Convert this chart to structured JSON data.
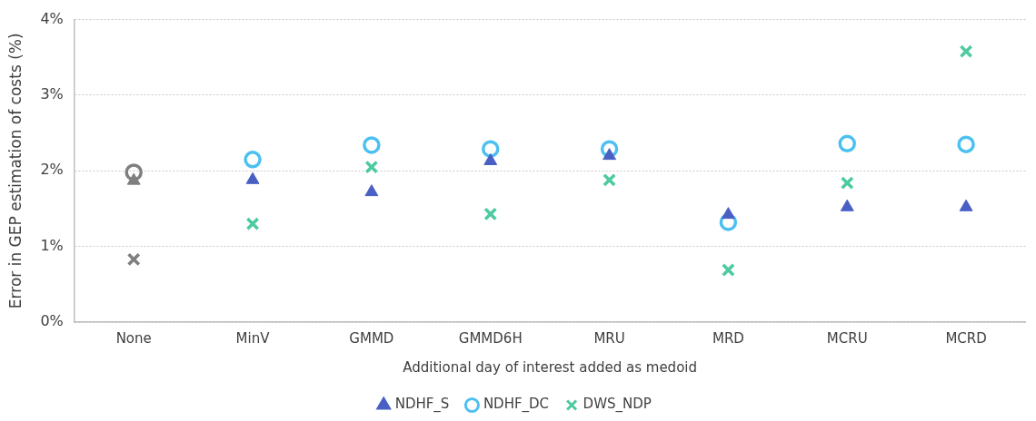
{
  "chart_data": {
    "type": "scatter",
    "xlabel": "Additional day of interest added as medoid",
    "ylabel": "Error in GEP estimation of costs (%)",
    "categories": [
      "None",
      "MinV",
      "GMMD",
      "GMMD6H",
      "MRU",
      "MRD",
      "MCRU",
      "MCRD"
    ],
    "ylim": [
      0,
      4
    ],
    "yticks": [
      {
        "value": 0,
        "label": "0%"
      },
      {
        "value": 1,
        "label": "1%"
      },
      {
        "value": 2,
        "label": "2%"
      },
      {
        "value": 3,
        "label": "3%"
      },
      {
        "value": 4,
        "label": "4%"
      }
    ],
    "grid": "y",
    "legend": "bottom",
    "series": [
      {
        "name": "NDHF_S",
        "marker": "triangle",
        "color": "#4a5fc4",
        "colors": [
          "#7f7f7f",
          "#4a5fc4",
          "#4a5fc4",
          "#4a5fc4",
          "#4a5fc4",
          "#4a5fc4",
          "#4a5fc4",
          "#4a5fc4"
        ],
        "values": [
          1.87,
          1.88,
          1.72,
          2.13,
          2.2,
          1.42,
          1.52,
          1.52
        ]
      },
      {
        "name": "NDHF_DC",
        "marker": "circle",
        "color": "#4cc0f0",
        "colors": [
          "#7f7f7f",
          "#4cc0f0",
          "#4cc0f0",
          "#4cc0f0",
          "#4cc0f0",
          "#4cc0f0",
          "#4cc0f0",
          "#4cc0f0"
        ],
        "values": [
          1.98,
          2.15,
          2.34,
          2.29,
          2.29,
          1.32,
          2.36,
          2.35
        ]
      },
      {
        "name": "DWS_NDP",
        "marker": "cross",
        "color": "#4ccaa0",
        "colors": [
          "#7f7f7f",
          "#4ccaa0",
          "#4ccaa0",
          "#4ccaa0",
          "#4ccaa0",
          "#4ccaa0",
          "#4ccaa0",
          "#4ccaa0"
        ],
        "values": [
          0.83,
          1.3,
          2.05,
          1.43,
          1.88,
          0.69,
          1.84,
          3.58
        ]
      }
    ]
  }
}
